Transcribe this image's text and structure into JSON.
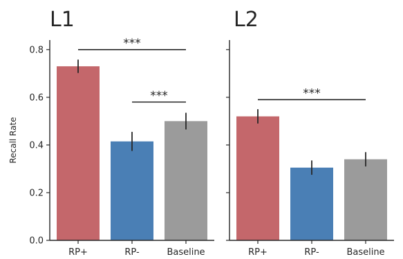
{
  "chart_data": [
    {
      "type": "bar",
      "title": "L1",
      "ylabel": "Recall Rate",
      "categories": [
        "RP+",
        "RP-",
        "Baseline"
      ],
      "values": [
        0.73,
        0.415,
        0.5
      ],
      "errors": [
        0.028,
        0.04,
        0.035
      ],
      "colors": [
        "#c4676b",
        "#4a7fb5",
        "#9b9b9b"
      ],
      "ylim": [
        0,
        0.84
      ],
      "yticks": [
        "0.0",
        "0.2",
        "0.4",
        "0.6",
        "0.8"
      ],
      "significance": [
        {
          "from": "RP+",
          "to": "Baseline",
          "y": 0.8,
          "label": "***"
        },
        {
          "from": "RP-",
          "to": "Baseline",
          "y": 0.58,
          "label": "***"
        }
      ],
      "grid": false
    },
    {
      "type": "bar",
      "title": "L2",
      "ylabel": "",
      "categories": [
        "RP+",
        "RP-",
        "Baseline"
      ],
      "values": [
        0.52,
        0.305,
        0.34
      ],
      "errors": [
        0.03,
        0.03,
        0.03
      ],
      "colors": [
        "#c4676b",
        "#4a7fb5",
        "#9b9b9b"
      ],
      "ylim": [
        0,
        0.84
      ],
      "significance": [
        {
          "from": "RP+",
          "to": "Baseline",
          "y": 0.59,
          "label": "***"
        }
      ],
      "grid": false
    }
  ]
}
